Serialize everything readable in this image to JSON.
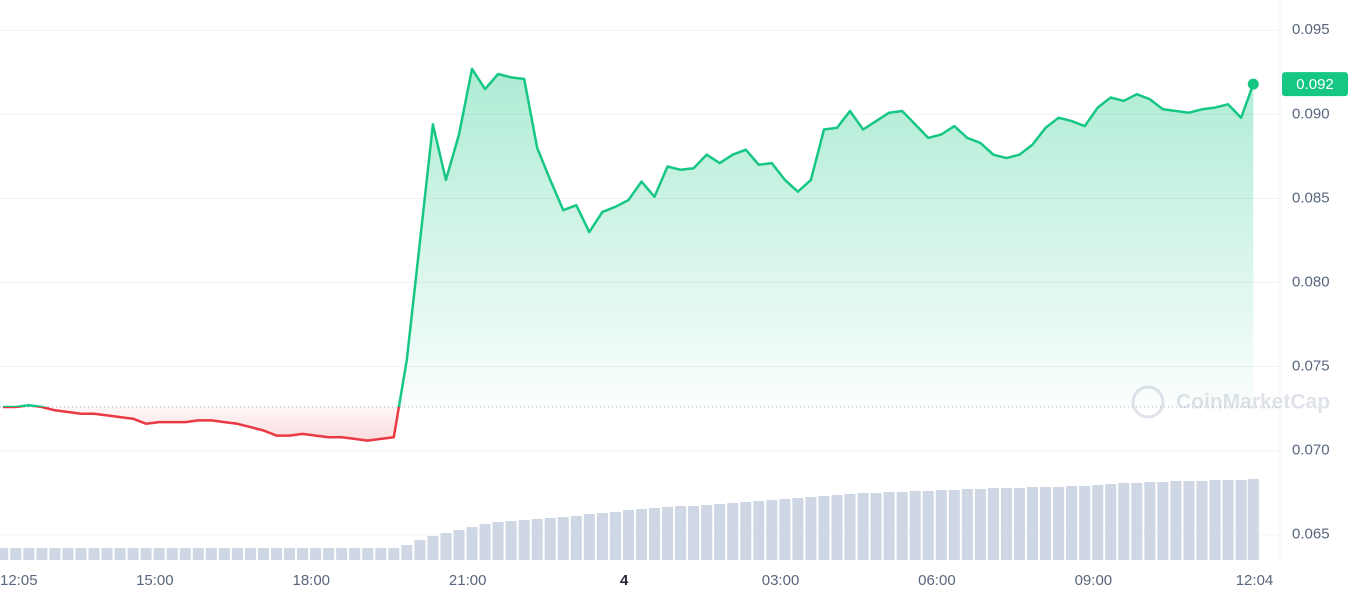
{
  "chart_data": {
    "type": "line",
    "watermark": "CoinMarketCap",
    "x": [
      12.083,
      12.333,
      12.583,
      12.833,
      13.083,
      13.333,
      13.583,
      13.833,
      14.083,
      14.333,
      14.583,
      14.833,
      15.083,
      15.333,
      15.583,
      15.833,
      16.083,
      16.333,
      16.583,
      16.833,
      17.083,
      17.333,
      17.583,
      17.833,
      18.083,
      18.333,
      18.583,
      18.833,
      19.083,
      19.333,
      19.583,
      19.833,
      20.083,
      20.333,
      20.583,
      20.833,
      21.083,
      21.333,
      21.583,
      21.833,
      22.083,
      22.333,
      22.583,
      22.833,
      23.083,
      23.333,
      23.583,
      23.833,
      24.083,
      24.333,
      24.583,
      24.833,
      25.083,
      25.333,
      25.583,
      25.833,
      26.083,
      26.333,
      26.583,
      26.833,
      27.083,
      27.333,
      27.583,
      27.833,
      28.083,
      28.333,
      28.583,
      28.833,
      29.083,
      29.333,
      29.583,
      29.833,
      30.083,
      30.333,
      30.583,
      30.833,
      31.083,
      31.333,
      31.583,
      31.833,
      32.083,
      32.333,
      32.583,
      32.833,
      33.083,
      33.333,
      33.583,
      33.833,
      34.083,
      34.333,
      34.583,
      34.833,
      35.083,
      35.333,
      35.583,
      35.833,
      36.067
    ],
    "series": [
      {
        "color": "#16c784",
        "down_color": "#ea3943",
        "values": [
          0.0726,
          0.0726,
          0.0727,
          0.0726,
          0.0724,
          0.0723,
          0.0722,
          0.0722,
          0.0721,
          0.072,
          0.0719,
          0.0716,
          0.0717,
          0.0717,
          0.0717,
          0.0718,
          0.0718,
          0.0717,
          0.0716,
          0.0714,
          0.0712,
          0.0709,
          0.0709,
          0.071,
          0.0709,
          0.0708,
          0.0708,
          0.0707,
          0.0706,
          0.0707,
          0.0708,
          0.0754,
          0.0824,
          0.0894,
          0.0861,
          0.0888,
          0.0927,
          0.0915,
          0.0924,
          0.0922,
          0.0921,
          0.088,
          0.0861,
          0.0843,
          0.0846,
          0.083,
          0.0842,
          0.0845,
          0.0849,
          0.086,
          0.0851,
          0.0869,
          0.0867,
          0.0868,
          0.0876,
          0.0871,
          0.0876,
          0.0879,
          0.087,
          0.0871,
          0.0861,
          0.0854,
          0.0861,
          0.0891,
          0.0892,
          0.0902,
          0.0891,
          0.0896,
          0.0901,
          0.0902,
          0.0894,
          0.0886,
          0.0888,
          0.0893,
          0.0886,
          0.0883,
          0.0876,
          0.0874,
          0.0876,
          0.0882,
          0.0892,
          0.0898,
          0.0896,
          0.0893,
          0.0904,
          0.091,
          0.0908,
          0.0912,
          0.0909,
          0.0903,
          0.0902,
          0.0901,
          0.0903,
          0.0904,
          0.0906,
          0.0898,
          0.0918
        ],
        "last_label": "0.092"
      }
    ],
    "reference_value": 0.0726,
    "volume": {
      "color": "#cfd6e4",
      "lim": [
        0,
        100
      ],
      "values": [
        12,
        12,
        12,
        12,
        12,
        12,
        12,
        12,
        12,
        12,
        12,
        12,
        12,
        12,
        12,
        12,
        12,
        12,
        12,
        12,
        12,
        12,
        12,
        12,
        12,
        12,
        12,
        12,
        12,
        12,
        12,
        15,
        20,
        24,
        27,
        30,
        33,
        36,
        38,
        39,
        40,
        41,
        42,
        43,
        44,
        46,
        47,
        48,
        50,
        51,
        52,
        53,
        54,
        54,
        55,
        56,
        57,
        58,
        59,
        60,
        61,
        62,
        63,
        64,
        65,
        66,
        67,
        67,
        68,
        68,
        69,
        69,
        70,
        70,
        71,
        71,
        72,
        72,
        72,
        73,
        73,
        73,
        74,
        74,
        75,
        76,
        77,
        77,
        78,
        78,
        79,
        79,
        79,
        80,
        80,
        80,
        81
      ]
    },
    "xlim": [
      12.03,
      36.1
    ],
    "xticks": [
      {
        "value": 12.083,
        "label": "12:05"
      },
      {
        "value": 15,
        "label": "15:00"
      },
      {
        "value": 18,
        "label": "18:00"
      },
      {
        "value": 21,
        "label": "21:00"
      },
      {
        "value": 24,
        "label": "4"
      },
      {
        "value": 27,
        "label": "03:00"
      },
      {
        "value": 30,
        "label": "06:00"
      },
      {
        "value": 33,
        "label": "09:00"
      },
      {
        "value": 36.067,
        "label": "12:04"
      }
    ],
    "ylim": [
      0.0635,
      0.0968
    ],
    "yticks": [
      0.065,
      {
        "value": 0.07,
        "label": "0.070"
      },
      0.075,
      {
        "value": 0.08,
        "label": "0.080"
      },
      0.085,
      {
        "value": 0.09,
        "label": "0.090"
      },
      0.095
    ],
    "grid": true
  }
}
